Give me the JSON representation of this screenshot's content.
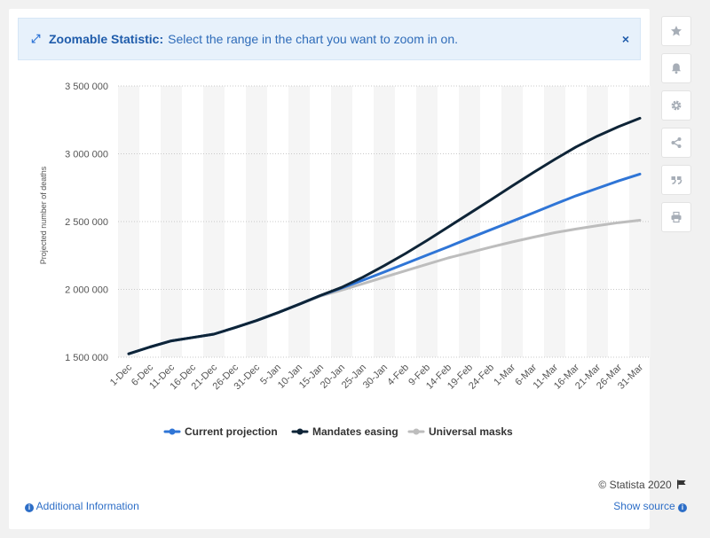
{
  "banner": {
    "title": "Zoomable Statistic:",
    "text": "Select the range in the chart you want to zoom in on.",
    "close": "×"
  },
  "toolbar": {
    "icons": [
      "star-icon",
      "bell-icon",
      "gear-icon",
      "share-icon",
      "quote-icon",
      "print-icon"
    ]
  },
  "footer": {
    "credit": "© Statista 2020",
    "additional_info": "Additional Information",
    "show_source": "Show source"
  },
  "colors": {
    "current": "#2f75d6",
    "mandates": "#0e2437",
    "masks": "#bdbdbd",
    "link": "#2d6ec7"
  },
  "chart_data": {
    "type": "line",
    "title": "",
    "xlabel": "",
    "ylabel": "Projected number of deaths",
    "ylim": [
      1500000,
      3500000
    ],
    "yticks": [
      1500000,
      2000000,
      2500000,
      3000000,
      3500000
    ],
    "ytick_labels": [
      "1 500 000",
      "2 000 000",
      "2 500 000",
      "3 000 000",
      "3 500 000"
    ],
    "x": [
      "1-Dec",
      "6-Dec",
      "11-Dec",
      "16-Dec",
      "21-Dec",
      "26-Dec",
      "31-Dec",
      "5-Jan",
      "10-Jan",
      "15-Jan",
      "20-Jan",
      "25-Jan",
      "30-Jan",
      "4-Feb",
      "9-Feb",
      "14-Feb",
      "19-Feb",
      "24-Feb",
      "1-Mar",
      "6-Mar",
      "11-Mar",
      "16-Mar",
      "21-Mar",
      "26-Mar",
      "31-Mar"
    ],
    "legend_position": "bottom-center",
    "grid": true,
    "series": [
      {
        "name": "Current projection",
        "color": "#2f75d6",
        "values": [
          1525000,
          1575000,
          1620000,
          1645000,
          1670000,
          1718000,
          1770000,
          1828000,
          1890000,
          1955000,
          2010000,
          2068000,
          2128000,
          2190000,
          2252000,
          2314000,
          2378000,
          2440000,
          2502000,
          2565000,
          2628000,
          2690000,
          2745000,
          2800000,
          2850000
        ]
      },
      {
        "name": "Mandates easing",
        "color": "#0e2437",
        "values": [
          1525000,
          1575000,
          1620000,
          1645000,
          1670000,
          1718000,
          1770000,
          1828000,
          1890000,
          1955000,
          2015000,
          2090000,
          2175000,
          2265000,
          2360000,
          2460000,
          2560000,
          2660000,
          2762000,
          2862000,
          2958000,
          3050000,
          3130000,
          3200000,
          3262000
        ]
      },
      {
        "name": "Universal masks",
        "color": "#bdbdbd",
        "values": [
          1525000,
          1575000,
          1620000,
          1645000,
          1670000,
          1718000,
          1770000,
          1828000,
          1890000,
          1950000,
          1995000,
          2042000,
          2090000,
          2138000,
          2185000,
          2232000,
          2272000,
          2312000,
          2350000,
          2385000,
          2418000,
          2445000,
          2470000,
          2492000,
          2510000
        ]
      }
    ]
  }
}
